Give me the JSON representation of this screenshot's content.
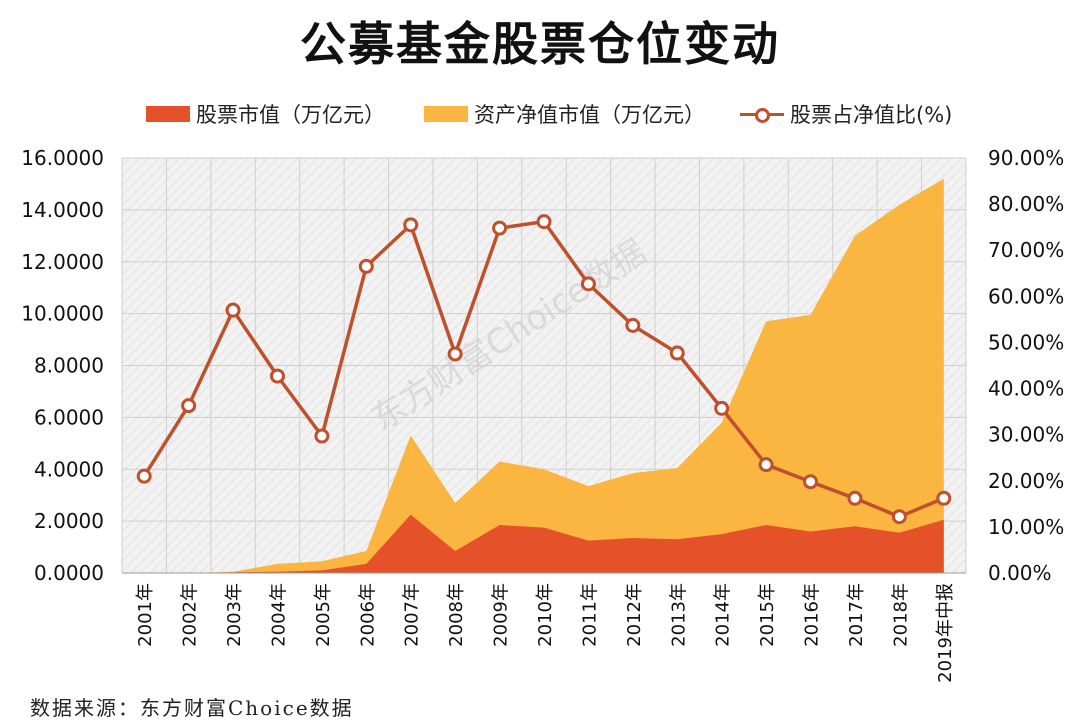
{
  "title": "公募基金股票仓位变动",
  "source": "数据来源：东方财富Choice数据",
  "watermark": "东方财富Choice数据",
  "colors": {
    "stock_value": "#e5522a",
    "net_asset": "#fbb642",
    "ratio_line": "#c0502b",
    "grid": "#cfcfcf",
    "plot_bg": "#f2f2f2"
  },
  "chart_data": {
    "type": "area",
    "title": "公募基金股票仓位变动",
    "categories": [
      "2001年",
      "2002年",
      "2003年",
      "2004年",
      "2005年",
      "2006年",
      "2007年",
      "2008年",
      "2009年",
      "2010年",
      "2011年",
      "2012年",
      "2013年",
      "2014年",
      "2015年",
      "2016年",
      "2017年",
      "2018年",
      "2019年中报"
    ],
    "series": [
      {
        "name": "股票市值（万亿元）",
        "type": "area",
        "axis": "left",
        "values": [
          0,
          0,
          0.03,
          0.05,
          0.1,
          0.35,
          2.25,
          0.85,
          1.85,
          1.75,
          1.25,
          1.35,
          1.3,
          1.5,
          1.85,
          1.6,
          1.8,
          1.55,
          2.05
        ]
      },
      {
        "name": "资产净值市值（万亿元）",
        "type": "area",
        "axis": "left",
        "values": [
          0,
          0,
          0.05,
          0.35,
          0.45,
          0.85,
          5.3,
          2.7,
          4.3,
          4.0,
          3.35,
          3.85,
          4.05,
          5.8,
          9.7,
          9.95,
          13.0,
          14.2,
          15.2
        ]
      },
      {
        "name": "股票占净值比(%)",
        "type": "line",
        "axis": "right",
        "values": [
          21.0,
          36.3,
          57.0,
          42.7,
          29.7,
          66.5,
          75.5,
          47.5,
          74.8,
          76.2,
          62.7,
          53.7,
          47.7,
          35.7,
          23.5,
          19.8,
          16.2,
          12.2,
          16.2
        ]
      }
    ],
    "y_left": {
      "min": 0,
      "max": 16,
      "step": 2,
      "tick_labels": [
        "0.0000",
        "2.0000",
        "4.0000",
        "6.0000",
        "8.0000",
        "10.0000",
        "12.0000",
        "14.0000",
        "16.0000"
      ]
    },
    "y_right": {
      "min": 0,
      "max": 90,
      "step": 10,
      "tick_labels": [
        "0.00%",
        "10.00%",
        "20.00%",
        "30.00%",
        "40.00%",
        "50.00%",
        "60.00%",
        "70.00%",
        "80.00%",
        "90.00%"
      ]
    },
    "grid": true,
    "legend_position": "top"
  }
}
